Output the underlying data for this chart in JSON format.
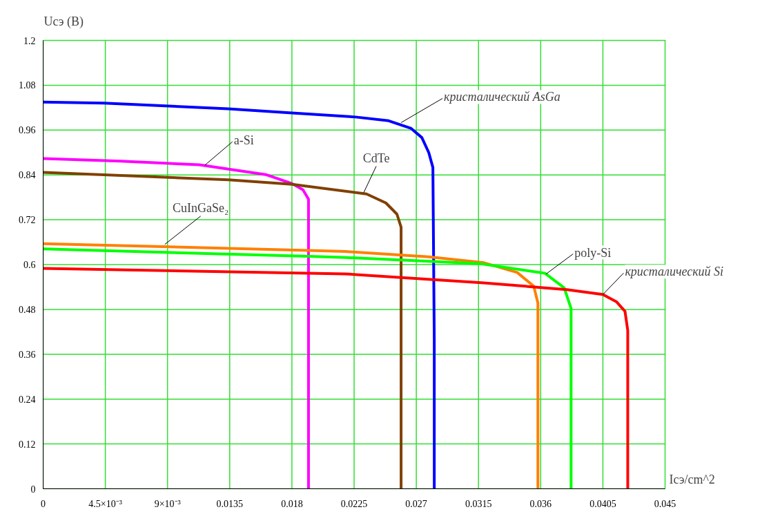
{
  "chart_data": {
    "type": "line",
    "xlabel": "Iсэ/cm^2",
    "ylabel": "Uсэ (В)",
    "xlim": [
      0,
      0.045
    ],
    "ylim": [
      0,
      1.2
    ],
    "xticks": [
      0,
      {
        "value": 0.0045,
        "label": "4.5×10⁻³"
      },
      {
        "value": 0.009,
        "label": "9×10⁻³"
      },
      0.0135,
      0.018,
      0.0225,
      0.027,
      0.0315,
      0.036,
      0.0405,
      0.045
    ],
    "yticks": [
      0,
      0.12,
      0.24,
      0.36,
      0.48,
      0.6,
      0.72,
      0.84,
      0.96,
      1.08,
      1.2
    ],
    "grid": true,
    "marker": "none",
    "line_style": "solid",
    "series": [
      {
        "color": "#0000ff",
        "x": [
          0,
          0.0044,
          0.0134,
          0.018,
          0.0226,
          0.025,
          0.0266,
          0.0274,
          0.0279,
          0.0282,
          0.0283,
          0.0283
        ],
        "values": [
          1.035,
          1.032,
          1.017,
          1.006,
          0.995,
          0.985,
          0.965,
          0.94,
          0.9,
          0.86,
          0.4,
          0
        ]
      },
      {
        "color": "#ff00ff",
        "x": [
          0,
          0.0056,
          0.0113,
          0.0161,
          0.018,
          0.0188,
          0.0192,
          0.0192,
          0.0192
        ],
        "values": [
          0.884,
          0.877,
          0.867,
          0.841,
          0.817,
          0.8,
          0.775,
          0.4,
          0
        ]
      },
      {
        "color": "#804000",
        "x": [
          0,
          0.0134,
          0.018,
          0.0234,
          0.0248,
          0.0256,
          0.0259,
          0.0259
        ],
        "values": [
          0.847,
          0.827,
          0.815,
          0.789,
          0.765,
          0.735,
          0.7,
          0
        ]
      },
      {
        "color": "#ff8000",
        "x": [
          0,
          0.0192,
          0.0219,
          0.0279,
          0.0319,
          0.0343,
          0.0355,
          0.0358,
          0.0358
        ],
        "values": [
          0.656,
          0.638,
          0.635,
          0.621,
          0.605,
          0.579,
          0.542,
          0.497,
          0
        ]
      },
      {
        "color": "#00ff00",
        "x": [
          0,
          0.0192,
          0.0219,
          0.0315,
          0.0363,
          0.0377,
          0.0382,
          0.0382
        ],
        "values": [
          0.642,
          0.622,
          0.619,
          0.603,
          0.577,
          0.538,
          0.483,
          0
        ]
      },
      {
        "color": "#ff0000",
        "x": [
          0,
          0.0219,
          0.0319,
          0.0379,
          0.0405,
          0.0415,
          0.0421,
          0.0423,
          0.0423
        ],
        "values": [
          0.59,
          0.575,
          0.551,
          0.533,
          0.52,
          0.5,
          0.475,
          0.424,
          0
        ]
      }
    ],
    "annotations": [
      {
        "text": "кристалический AsGa",
        "x": 0.0259,
        "y": 0.98
      },
      {
        "text": "a-Si",
        "x": 0.0117,
        "y": 0.866
      },
      {
        "text": "CdTe",
        "x": 0.0232,
        "y": 0.793
      },
      {
        "text": "CuInGaSe₂",
        "x": 0.0088,
        "y": 0.654
      },
      {
        "text": "poly-Si",
        "x": 0.0364,
        "y": 0.575
      },
      {
        "text": "кристалический Si",
        "x": 0.0405,
        "y": 0.52
      }
    ]
  }
}
